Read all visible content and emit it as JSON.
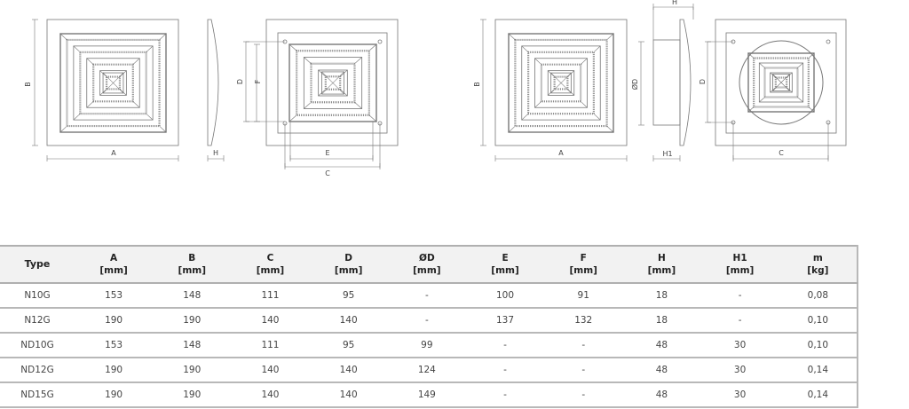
{
  "drawings": {
    "left": {
      "B": "B",
      "A": "A",
      "H": "H",
      "D": "D",
      "F": "F",
      "E": "E",
      "C": "C"
    },
    "right": {
      "B": "B",
      "A": "A",
      "H": "H",
      "OD": "ØD",
      "H1": "H1",
      "D": "D",
      "C": "C"
    }
  },
  "table": {
    "headers": [
      {
        "name": "Type",
        "unit": ""
      },
      {
        "name": "A",
        "unit": "[mm]"
      },
      {
        "name": "B",
        "unit": "[mm]"
      },
      {
        "name": "C",
        "unit": "[mm]"
      },
      {
        "name": "D",
        "unit": "[mm]"
      },
      {
        "name": "ØD",
        "unit": "[mm]"
      },
      {
        "name": "E",
        "unit": "[mm]"
      },
      {
        "name": "F",
        "unit": "[mm]"
      },
      {
        "name": "H",
        "unit": "[mm]"
      },
      {
        "name": "H1",
        "unit": "[mm]"
      },
      {
        "name": "m",
        "unit": "[kg]"
      }
    ],
    "rows": [
      [
        "N10G",
        "153",
        "148",
        "111",
        "95",
        "-",
        "100",
        "91",
        "18",
        "-",
        "0,08"
      ],
      [
        "N12G",
        "190",
        "190",
        "140",
        "140",
        "-",
        "137",
        "132",
        "18",
        "-",
        "0,10"
      ],
      [
        "ND10G",
        "153",
        "148",
        "111",
        "95",
        "99",
        "-",
        "-",
        "48",
        "30",
        "0,10"
      ],
      [
        "ND12G",
        "190",
        "190",
        "140",
        "140",
        "124",
        "-",
        "-",
        "48",
        "30",
        "0,14"
      ],
      [
        "ND15G",
        "190",
        "190",
        "140",
        "140",
        "149",
        "-",
        "-",
        "48",
        "30",
        "0,14"
      ]
    ]
  }
}
